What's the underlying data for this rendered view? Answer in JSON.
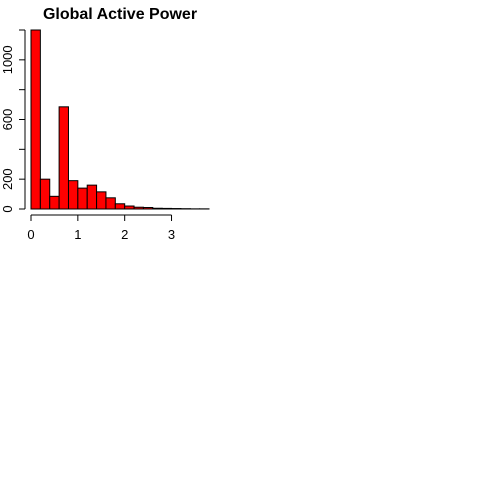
{
  "chart_data": {
    "type": "bar",
    "title": "Global Active Power",
    "xlabel": "",
    "ylabel": "",
    "bar_color": "#ff0000",
    "bin_width": 0.2,
    "bins_start": [
      0,
      0.2,
      0.4,
      0.6,
      0.8,
      1.0,
      1.2,
      1.4,
      1.6,
      1.8,
      2.0,
      2.2,
      2.4,
      2.6,
      2.8,
      3.0,
      3.2,
      3.4,
      3.6
    ],
    "values": [
      1200,
      200,
      85,
      685,
      190,
      140,
      160,
      115,
      75,
      35,
      20,
      12,
      10,
      5,
      4,
      3,
      2,
      1,
      1
    ],
    "xlim": [
      0,
      3.8
    ],
    "ylim": [
      0,
      1200
    ],
    "x_ticks": [
      0,
      1,
      2,
      3
    ],
    "x_tick_labels": [
      "0",
      "1",
      "2",
      "3"
    ],
    "y_ticks": [
      0,
      200,
      400,
      600,
      800,
      1000,
      1200
    ],
    "y_tick_labels": [
      "0",
      "200",
      "",
      "600",
      "",
      "1000",
      ""
    ],
    "grid": false,
    "legend": "none"
  }
}
